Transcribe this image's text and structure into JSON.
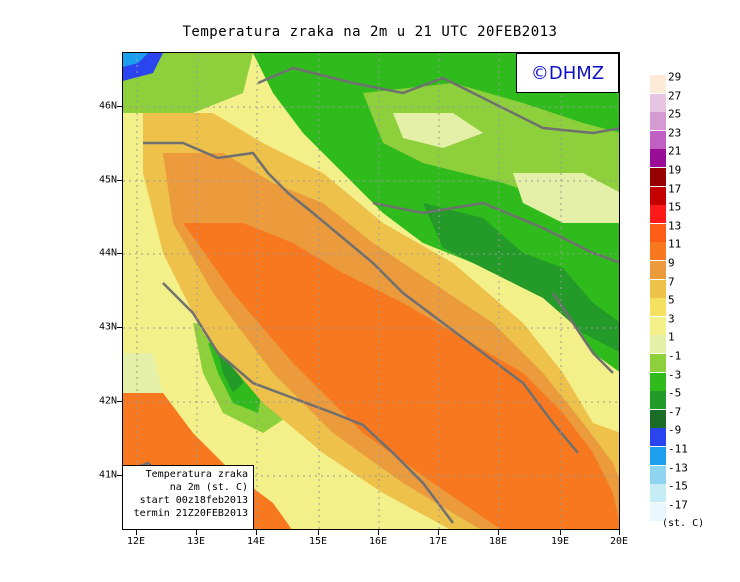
{
  "title": "Temperatura zraka na 2m u 21 UTC 20FEB2013",
  "watermark": "©DHMZ",
  "infobox": {
    "line1": "Temperatura zraka",
    "line2": "na 2m (st. C)",
    "line3": "start 00z18feb2013",
    "line4": "termin 21Z20FEB2013"
  },
  "lat_labels": [
    "46N",
    "45N",
    "44N",
    "43N",
    "42N",
    "41N"
  ],
  "lon_labels": [
    "12E",
    "13E",
    "14E",
    "15E",
    "16E",
    "17E",
    "18E",
    "19E",
    "20E"
  ],
  "legend": {
    "unit": "(st. C)",
    "labels": [
      "29",
      "27",
      "25",
      "23",
      "21",
      "19",
      "17",
      "15",
      "13",
      "11",
      "9",
      "7",
      "5",
      "3",
      "1",
      "-1",
      "-3",
      "-5",
      "-7",
      "-9",
      "-11",
      "-13",
      "-15",
      "-17"
    ],
    "colors": [
      "#fdebd8",
      "#e6c6e3",
      "#d39bd1",
      "#c060c3",
      "#9a0e97",
      "#960000",
      "#c40000",
      "#ff1a1a",
      "#ff5c18",
      "#f7781e",
      "#eb9a3c",
      "#edc14a",
      "#f4e160",
      "#f3f08a",
      "#e4f0a8",
      "#8ecf3c",
      "#2fbb1c",
      "#249a29",
      "#1a6c27",
      "#2a44ef",
      "#1d9ff0",
      "#8fd4f0",
      "#c6ecf6",
      "#e8f7fb"
    ]
  }
}
